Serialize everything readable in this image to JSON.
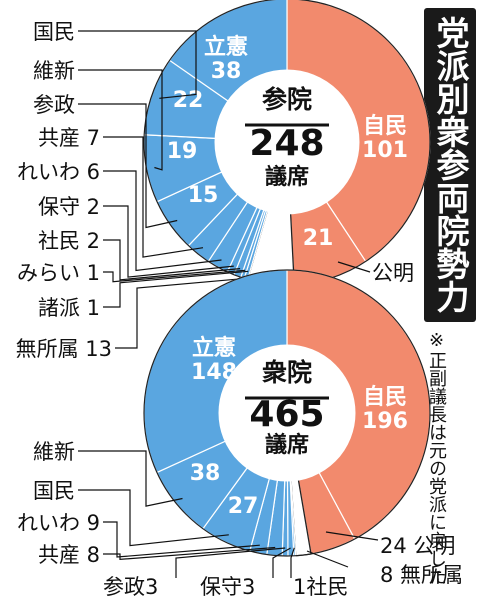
{
  "title": "党派別衆参両院勢力",
  "note": "※正副議長は元の党派に戻した",
  "colors": {
    "ruling": "#f28a6d",
    "opposition": "#5aa6e0",
    "other": "#ffffff",
    "ink": "#111111"
  },
  "chart_data": [
    {
      "type": "pie",
      "chamber": "参院",
      "total": "248",
      "unit": "議席",
      "slices": [
        {
          "name": "自民",
          "value": 101,
          "label": "101",
          "side": "ruling"
        },
        {
          "name": "公明",
          "value": 21,
          "label": "21",
          "side": "ruling"
        },
        {
          "name": "無所属",
          "value": 13,
          "label": "13",
          "side": "other"
        },
        {
          "name": "諸派",
          "value": 1,
          "label": "1",
          "side": "opposition"
        },
        {
          "name": "みらい",
          "value": 1,
          "label": "1",
          "side": "opposition"
        },
        {
          "name": "社民",
          "value": 2,
          "label": "2",
          "side": "opposition"
        },
        {
          "name": "保守",
          "value": 2,
          "label": "2",
          "side": "opposition"
        },
        {
          "name": "れいわ",
          "value": 6,
          "label": "6",
          "side": "opposition"
        },
        {
          "name": "共産",
          "value": 7,
          "label": "7",
          "side": "opposition"
        },
        {
          "name": "参政",
          "value": 15,
          "label": "15",
          "side": "opposition"
        },
        {
          "name": "維新",
          "value": 19,
          "label": "19",
          "side": "opposition"
        },
        {
          "name": "国民",
          "value": 22,
          "label": "22",
          "side": "opposition"
        },
        {
          "name": "立憲",
          "value": 38,
          "label": "38",
          "side": "opposition"
        }
      ]
    },
    {
      "type": "pie",
      "chamber": "衆院",
      "total": "465",
      "unit": "議席",
      "slices": [
        {
          "name": "自民",
          "value": 196,
          "label": "196",
          "side": "ruling"
        },
        {
          "name": "公明",
          "value": 24,
          "label": "24",
          "side": "ruling"
        },
        {
          "name": "無所属",
          "value": 8,
          "label": "8",
          "side": "other"
        },
        {
          "name": "社民",
          "value": 1,
          "label": "1",
          "side": "opposition"
        },
        {
          "name": "保守",
          "value": 3,
          "label": "3",
          "side": "opposition"
        },
        {
          "name": "参政",
          "value": 3,
          "label": "3",
          "side": "opposition"
        },
        {
          "name": "共産",
          "value": 8,
          "label": "8",
          "side": "opposition"
        },
        {
          "name": "れいわ",
          "value": 9,
          "label": "9",
          "side": "opposition"
        },
        {
          "name": "国民",
          "value": 27,
          "label": "27",
          "side": "opposition"
        },
        {
          "name": "維新",
          "value": 38,
          "label": "38",
          "side": "opposition"
        },
        {
          "name": "立憲",
          "value": 148,
          "label": "148",
          "side": "opposition"
        }
      ]
    }
  ]
}
